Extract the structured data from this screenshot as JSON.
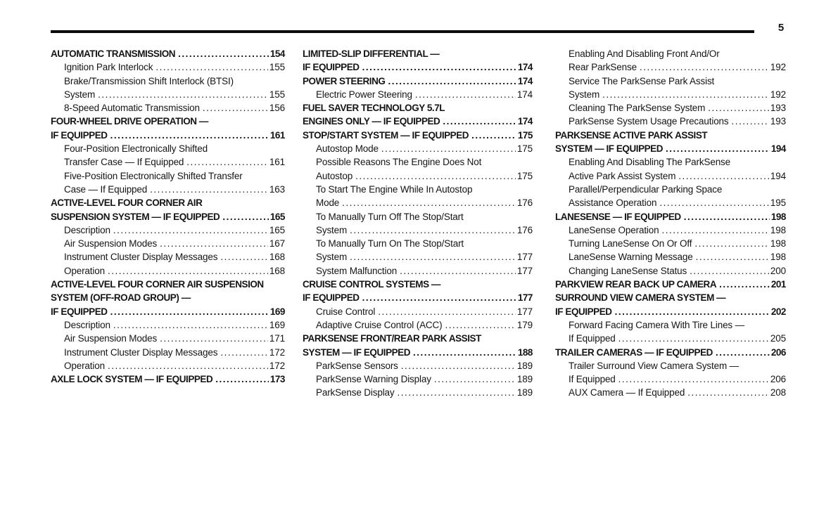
{
  "page": {
    "number": "5"
  },
  "colors": {
    "text": "#151515",
    "rule": "#0b0b0b",
    "background": "#ffffff"
  },
  "columns": [
    {
      "lines": [
        {
          "kind": "section",
          "text": "AUTOMATIC TRANSMISSION",
          "page": "154"
        },
        {
          "kind": "sub",
          "text": "Ignition Park Interlock",
          "page": "155"
        },
        {
          "kind": "sub",
          "text": "Brake/Transmission Shift Interlock (BTSI)"
        },
        {
          "kind": "sub",
          "text": "System",
          "page": "155"
        },
        {
          "kind": "sub",
          "text": "8-Speed Automatic Transmission",
          "page": "156"
        },
        {
          "kind": "section",
          "text": "FOUR-WHEEL DRIVE OPERATION —"
        },
        {
          "kind": "section",
          "text": "IF EQUIPPED",
          "page": "161"
        },
        {
          "kind": "sub",
          "text": "Four-Position Electronically Shifted"
        },
        {
          "kind": "sub",
          "text": "Transfer Case — If Equipped",
          "page": "161"
        },
        {
          "kind": "sub",
          "text": "Five-Position Electronically Shifted Transfer"
        },
        {
          "kind": "sub",
          "text": "Case — If Equipped",
          "page": "163"
        },
        {
          "kind": "section",
          "text": "ACTIVE-LEVEL FOUR CORNER AIR"
        },
        {
          "kind": "section",
          "text": "SUSPENSION SYSTEM — IF EQUIPPED",
          "page": "165"
        },
        {
          "kind": "sub",
          "text": "Description",
          "page": "165"
        },
        {
          "kind": "sub",
          "text": "Air Suspension Modes",
          "page": "167"
        },
        {
          "kind": "sub",
          "text": "Instrument Cluster Display Messages",
          "page": "168"
        },
        {
          "kind": "sub",
          "text": "Operation",
          "page": "168"
        },
        {
          "kind": "section",
          "text": "ACTIVE-LEVEL FOUR CORNER AIR SUSPENSION"
        },
        {
          "kind": "section",
          "text": "SYSTEM (OFF-ROAD GROUP) —"
        },
        {
          "kind": "section",
          "text": "IF EQUIPPED",
          "page": "169"
        },
        {
          "kind": "sub",
          "text": "Description",
          "page": "169"
        },
        {
          "kind": "sub",
          "text": "Air Suspension Modes",
          "page": "171"
        },
        {
          "kind": "sub",
          "text": "Instrument Cluster Display Messages",
          "page": "172"
        },
        {
          "kind": "sub",
          "text": "Operation",
          "page": "172"
        },
        {
          "kind": "section",
          "text": "AXLE LOCK SYSTEM — IF EQUIPPED",
          "page": "173"
        }
      ]
    },
    {
      "lines": [
        {
          "kind": "section",
          "text": "LIMITED-SLIP DIFFERENTIAL —"
        },
        {
          "kind": "section",
          "text": "IF EQUIPPED",
          "page": "174"
        },
        {
          "kind": "section",
          "text": "POWER STEERING",
          "page": "174"
        },
        {
          "kind": "sub",
          "text": "Electric Power Steering",
          "page": "174"
        },
        {
          "kind": "section",
          "text": "FUEL SAVER TECHNOLOGY 5.7L"
        },
        {
          "kind": "section",
          "text": "ENGINES ONLY — IF EQUIPPED",
          "page": "174"
        },
        {
          "kind": "section",
          "text": "STOP/START SYSTEM — IF EQUIPPED",
          "page": "175"
        },
        {
          "kind": "sub",
          "text": "Autostop Mode",
          "page": "175"
        },
        {
          "kind": "sub",
          "text": "Possible Reasons The Engine Does Not"
        },
        {
          "kind": "sub",
          "text": "Autostop",
          "page": "175"
        },
        {
          "kind": "sub",
          "text": "To Start The Engine While In Autostop"
        },
        {
          "kind": "sub",
          "text": "Mode",
          "page": "176"
        },
        {
          "kind": "sub",
          "text": "To Manually Turn Off The Stop/Start"
        },
        {
          "kind": "sub",
          "text": "System",
          "page": "176"
        },
        {
          "kind": "sub",
          "text": "To Manually Turn On The Stop/Start"
        },
        {
          "kind": "sub",
          "text": "System",
          "page": "177"
        },
        {
          "kind": "sub",
          "text": "System Malfunction",
          "page": "177"
        },
        {
          "kind": "section",
          "text": "CRUISE CONTROL SYSTEMS —"
        },
        {
          "kind": "section",
          "text": "IF EQUIPPED",
          "page": "177"
        },
        {
          "kind": "sub",
          "text": "Cruise Control",
          "page": "177"
        },
        {
          "kind": "sub",
          "text": "Adaptive Cruise Control (ACC)",
          "page": "179"
        },
        {
          "kind": "section",
          "text": "PARKSENSE FRONT/REAR PARK ASSIST"
        },
        {
          "kind": "section",
          "text": "SYSTEM — IF EQUIPPED",
          "page": "188"
        },
        {
          "kind": "sub",
          "text": "ParkSense Sensors",
          "page": "189"
        },
        {
          "kind": "sub",
          "text": "ParkSense Warning Display",
          "page": "189"
        },
        {
          "kind": "sub",
          "text": "ParkSense Display",
          "page": "189"
        }
      ]
    },
    {
      "lines": [
        {
          "kind": "sub",
          "text": "Enabling And Disabling Front And/Or"
        },
        {
          "kind": "sub",
          "text": "Rear ParkSense",
          "page": "192"
        },
        {
          "kind": "sub",
          "text": "Service The ParkSense Park Assist"
        },
        {
          "kind": "sub",
          "text": "System",
          "page": "192"
        },
        {
          "kind": "sub",
          "text": "Cleaning The ParkSense System",
          "page": "193"
        },
        {
          "kind": "sub",
          "text": "ParkSense System Usage Precautions",
          "page": "193"
        },
        {
          "kind": "section",
          "text": "PARKSENSE ACTIVE PARK ASSIST"
        },
        {
          "kind": "section",
          "text": "SYSTEM — IF EQUIPPED",
          "page": "194"
        },
        {
          "kind": "sub",
          "text": "Enabling And Disabling The ParkSense"
        },
        {
          "kind": "sub",
          "text": "Active Park Assist System",
          "page": "194"
        },
        {
          "kind": "sub",
          "text": "Parallel/Perpendicular Parking Space"
        },
        {
          "kind": "sub",
          "text": "Assistance Operation",
          "page": "195"
        },
        {
          "kind": "section",
          "text": "LANESENSE — IF EQUIPPED",
          "page": "198"
        },
        {
          "kind": "sub",
          "text": "LaneSense Operation",
          "page": "198"
        },
        {
          "kind": "sub",
          "text": "Turning LaneSense On Or Off",
          "page": "198"
        },
        {
          "kind": "sub",
          "text": "LaneSense Warning Message",
          "page": "198"
        },
        {
          "kind": "sub",
          "text": "Changing LaneSense Status",
          "page": "200"
        },
        {
          "kind": "section",
          "text": "PARKVIEW REAR BACK UP CAMERA",
          "page": "201"
        },
        {
          "kind": "section",
          "text": "SURROUND VIEW CAMERA SYSTEM —"
        },
        {
          "kind": "section",
          "text": "IF EQUIPPED",
          "page": "202"
        },
        {
          "kind": "sub",
          "text": "Forward Facing Camera With Tire Lines —"
        },
        {
          "kind": "sub",
          "text": "If Equipped",
          "page": "205"
        },
        {
          "kind": "section",
          "text": "TRAILER CAMERAS — IF EQUIPPED",
          "page": "206"
        },
        {
          "kind": "sub",
          "text": "Trailer Surround View Camera System —"
        },
        {
          "kind": "sub",
          "text": "If Equipped",
          "page": "206"
        },
        {
          "kind": "sub",
          "text": "AUX Camera — If Equipped",
          "page": "208"
        }
      ]
    }
  ]
}
